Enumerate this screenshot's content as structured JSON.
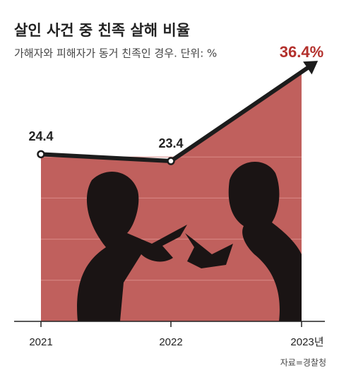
{
  "chart_data": {
    "type": "line",
    "title": "살인 사건 중 친족 살해 비율",
    "subtitle": "가해자와 피해자가 동거 친족인 경우. 단위: %",
    "categories": [
      "2021",
      "2022",
      "2023년"
    ],
    "values": [
      24.4,
      23.4,
      36.4
    ],
    "value_labels": [
      "24.4",
      "23.4",
      "36.4%"
    ],
    "color": "#1c1c1c",
    "area_color": "#c0605d",
    "ylim": [
      0,
      40
    ],
    "source": "자료=경찰청"
  }
}
